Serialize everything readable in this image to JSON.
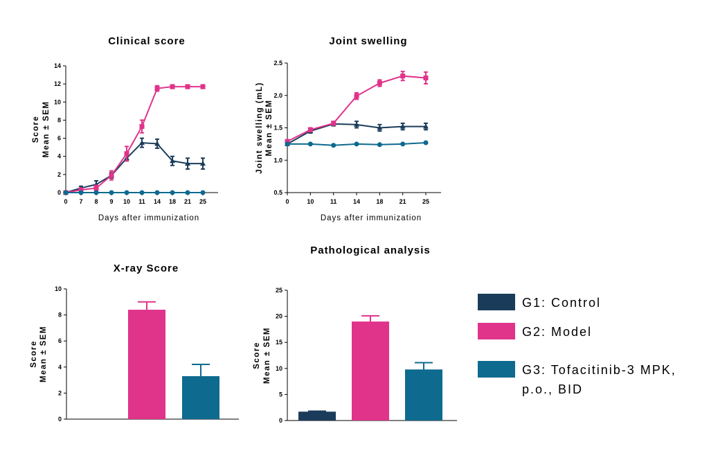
{
  "colors": {
    "g1": "#1a3c5a",
    "g2": "#e0338a",
    "g3": "#0e6a8f"
  },
  "legend": [
    {
      "line1": "G1: Control",
      "line2": "",
      "color": "#1a3c5a"
    },
    {
      "line1": "G2: Model",
      "line2": "",
      "color": "#e0338a"
    },
    {
      "line1": "G3: Tofacitinib-3 MPK,",
      "line2": "p.o., BID",
      "color": "#0e6a8f"
    }
  ],
  "chart_data": [
    {
      "type": "line",
      "title": "Clinical score",
      "xlabel": "Days after immunization",
      "ylabel": [
        "Score",
        "Mean ± SEM"
      ],
      "categories": [
        "0",
        "7",
        "8",
        "9",
        "10",
        "11",
        "14",
        "18",
        "21",
        "25"
      ],
      "ylim": [
        0,
        14
      ],
      "yticks": [
        0,
        2,
        4,
        6,
        8,
        10,
        12,
        14
      ],
      "series": [
        {
          "key": "g1",
          "values": [
            0,
            0.5,
            0.9,
            1.9,
            3.8,
            5.5,
            5.4,
            3.5,
            3.2,
            3.2
          ],
          "errors": [
            0,
            0.2,
            0.4,
            0.3,
            0.3,
            0.5,
            0.5,
            0.5,
            0.6,
            0.6
          ],
          "marker": "tri"
        },
        {
          "key": "g2",
          "values": [
            0,
            0.3,
            0.5,
            1.9,
            4.3,
            7.3,
            11.5,
            11.7,
            11.7,
            11.7
          ],
          "errors": [
            0,
            0.2,
            0.3,
            0.5,
            0.8,
            0.7,
            0.3,
            0.2,
            0.2,
            0.2
          ],
          "marker": "sq"
        },
        {
          "key": "g3",
          "values": [
            0,
            0,
            0,
            0,
            0,
            0,
            0,
            0,
            0,
            0
          ],
          "errors": [
            0,
            0,
            0,
            0,
            0,
            0,
            0,
            0,
            0,
            0
          ],
          "marker": "dot"
        }
      ]
    },
    {
      "type": "line",
      "title": "Joint swelling",
      "xlabel": "Days after immunization",
      "ylabel": [
        "Joint swelling (mL)",
        "Mean ± SEM"
      ],
      "categories": [
        "0",
        "10",
        "11",
        "14",
        "18",
        "21",
        "25"
      ],
      "ylim": [
        0.5,
        2.5
      ],
      "yticks": [
        "0.5",
        "1.0",
        "1.5",
        "2.0",
        "2.5"
      ],
      "series": [
        {
          "key": "g1",
          "values": [
            1.25,
            1.45,
            1.56,
            1.55,
            1.5,
            1.52,
            1.52
          ],
          "errors": [
            0.02,
            0.03,
            0.03,
            0.05,
            0.05,
            0.05,
            0.05
          ],
          "marker": "tri"
        },
        {
          "key": "g2",
          "values": [
            1.29,
            1.47,
            1.57,
            1.99,
            2.19,
            2.3,
            2.27
          ],
          "errors": [
            0.02,
            0.03,
            0.03,
            0.05,
            0.05,
            0.07,
            0.09
          ],
          "marker": "sq"
        },
        {
          "key": "g3",
          "values": [
            1.25,
            1.25,
            1.23,
            1.25,
            1.24,
            1.25,
            1.27
          ],
          "errors": [
            0.01,
            0.01,
            0.01,
            0.01,
            0.01,
            0.01,
            0.01
          ],
          "marker": "dot"
        }
      ]
    },
    {
      "type": "bar",
      "title": "X-ray Score",
      "ylabel": [
        "Score",
        "Mean ± SEM"
      ],
      "ylim": [
        0,
        10
      ],
      "yticks": [
        0,
        2,
        4,
        6,
        8,
        10
      ],
      "bars": [
        {
          "key": "g1",
          "value": 0,
          "error": 0
        },
        {
          "key": "g2",
          "value": 8.4,
          "error": 0.6
        },
        {
          "key": "g3",
          "value": 3.3,
          "error": 0.9
        }
      ]
    },
    {
      "type": "bar",
      "title": "Pathological analysis",
      "ylabel": [
        "Score",
        "Mean ± SEM"
      ],
      "ylim": [
        0,
        25
      ],
      "yticks": [
        0,
        5,
        10,
        15,
        20,
        25
      ],
      "bars": [
        {
          "key": "g1",
          "value": 1.7,
          "error": 0.1
        },
        {
          "key": "g2",
          "value": 19,
          "error": 1.1
        },
        {
          "key": "g3",
          "value": 9.8,
          "error": 1.3
        }
      ]
    }
  ]
}
